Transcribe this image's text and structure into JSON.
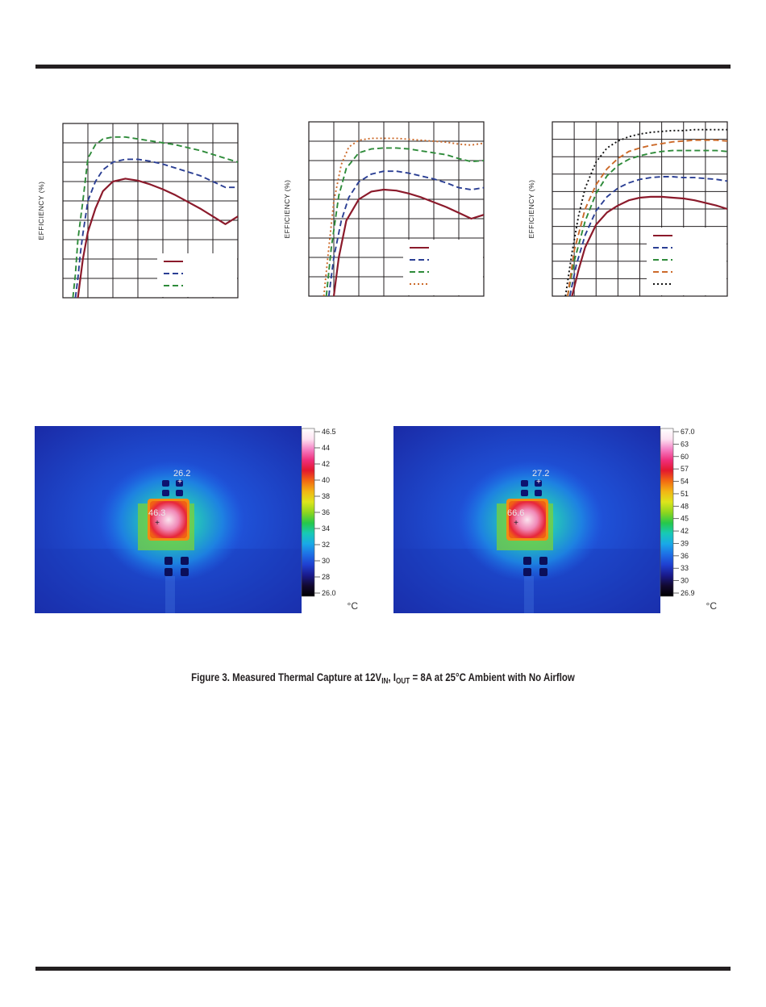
{
  "colors": {
    "rule": "#231f20",
    "grid": "#231f20",
    "series": [
      "#8b1a2b",
      "#2b3f94",
      "#2e8b3a",
      "#cc6a2a",
      "#111111"
    ]
  },
  "chart_data": [
    {
      "type": "line",
      "ylabel": "EFFICIENCY (%)",
      "grid": true,
      "legend_position": "bottom-right",
      "xlim": [
        0,
        7
      ],
      "ylim": [
        0,
        9
      ],
      "series": [
        {
          "style": "solid",
          "x": [
            0.6,
            0.7,
            0.8,
            1.0,
            1.3,
            1.6,
            2.0,
            2.5,
            3.0,
            3.5,
            4.0,
            4.5,
            5.0,
            5.5,
            6.0,
            6.5,
            7.0
          ],
          "y": [
            0,
            1.0,
            2.0,
            3.4,
            4.6,
            5.5,
            6.0,
            6.15,
            6.05,
            5.85,
            5.6,
            5.3,
            4.95,
            4.6,
            4.2,
            3.8,
            4.2
          ]
        },
        {
          "style": "dashed",
          "x": [
            0.5,
            0.6,
            0.7,
            0.8,
            1.0,
            1.3,
            1.6,
            2.0,
            2.5,
            3.0,
            3.5,
            4.0,
            4.5,
            5.0,
            5.5,
            6.0,
            6.5,
            7.0
          ],
          "y": [
            0,
            1.0,
            2.3,
            3.3,
            5.0,
            6.0,
            6.6,
            7.0,
            7.15,
            7.15,
            7.05,
            6.9,
            6.7,
            6.5,
            6.3,
            6.0,
            5.7,
            5.7
          ]
        },
        {
          "style": "dashed",
          "x": [
            0.4,
            0.5,
            0.6,
            0.8,
            1.0,
            1.3,
            1.6,
            2.0,
            2.5,
            3.0,
            3.5,
            4.0,
            4.5,
            5.0,
            5.5,
            6.0,
            6.5,
            7.0
          ],
          "y": [
            0,
            1.2,
            3.0,
            5.0,
            7.2,
            7.9,
            8.2,
            8.3,
            8.3,
            8.2,
            8.1,
            8.0,
            7.9,
            7.75,
            7.6,
            7.4,
            7.2,
            7.0
          ]
        }
      ]
    },
    {
      "type": "line",
      "ylabel": "EFFICIENCY (%)",
      "grid": true,
      "legend_position": "bottom-right",
      "xlim": [
        0,
        7
      ],
      "ylim": [
        0,
        9
      ],
      "series": [
        {
          "style": "solid",
          "x": [
            1.0,
            1.2,
            1.5,
            2.0,
            2.5,
            3.0,
            3.5,
            4.0,
            4.5,
            5.0,
            5.5,
            6.0,
            6.5,
            7.0
          ],
          "y": [
            0,
            2.0,
            3.9,
            5.0,
            5.4,
            5.5,
            5.45,
            5.3,
            5.1,
            4.85,
            4.6,
            4.3,
            4.0,
            4.2
          ]
        },
        {
          "style": "dashed",
          "x": [
            0.8,
            1.0,
            1.3,
            1.6,
            2.0,
            2.5,
            3.0,
            3.5,
            4.0,
            4.5,
            5.0,
            5.5,
            6.0,
            6.5,
            7.0
          ],
          "y": [
            0,
            2.0,
            3.9,
            5.1,
            5.9,
            6.3,
            6.45,
            6.45,
            6.35,
            6.2,
            6.05,
            5.85,
            5.6,
            5.5,
            5.6
          ]
        },
        {
          "style": "dashed",
          "x": [
            0.7,
            0.9,
            1.2,
            1.5,
            2.0,
            2.5,
            3.0,
            3.5,
            4.0,
            4.5,
            5.0,
            5.5,
            6.0,
            6.5,
            7.0
          ],
          "y": [
            0,
            2.5,
            5.2,
            6.6,
            7.4,
            7.6,
            7.65,
            7.65,
            7.6,
            7.5,
            7.4,
            7.3,
            7.1,
            6.95,
            7.0
          ]
        },
        {
          "style": "dotted",
          "x": [
            0.6,
            0.8,
            1.0,
            1.3,
            1.6,
            2.0,
            2.5,
            3.0,
            3.5,
            4.0,
            4.5,
            5.0,
            5.5,
            6.0,
            6.5,
            7.0
          ],
          "y": [
            0,
            2.5,
            4.9,
            6.8,
            7.7,
            8.05,
            8.15,
            8.15,
            8.15,
            8.1,
            8.05,
            8.0,
            7.95,
            7.85,
            7.8,
            7.9
          ]
        }
      ]
    },
    {
      "type": "line",
      "ylabel": "EFFICIENCY (%)",
      "grid": true,
      "legend_position": "bottom-right",
      "xlim": [
        0,
        8
      ],
      "ylim": [
        0,
        10
      ],
      "series": [
        {
          "style": "solid",
          "x": [
            0.9,
            1.2,
            1.5,
            2.0,
            2.5,
            3.0,
            3.5,
            4.0,
            4.5,
            5.0,
            5.5,
            6.0,
            6.5,
            7.0,
            7.5,
            8.0
          ],
          "y": [
            0,
            1.5,
            2.8,
            4.1,
            4.8,
            5.2,
            5.5,
            5.65,
            5.7,
            5.7,
            5.65,
            5.6,
            5.5,
            5.35,
            5.2,
            5.0
          ]
        },
        {
          "style": "dashed",
          "x": [
            0.8,
            1.1,
            1.5,
            2.0,
            2.5,
            3.0,
            3.5,
            4.0,
            4.5,
            5.0,
            5.5,
            6.0,
            6.5,
            7.0,
            7.5,
            8.0
          ],
          "y": [
            0,
            1.8,
            3.5,
            4.9,
            5.7,
            6.2,
            6.5,
            6.7,
            6.8,
            6.85,
            6.85,
            6.8,
            6.8,
            6.75,
            6.7,
            6.6
          ]
        },
        {
          "style": "dashed",
          "x": [
            0.7,
            1.0,
            1.5,
            2.0,
            2.5,
            3.0,
            3.5,
            4.0,
            4.5,
            5.0,
            5.5,
            6.0,
            6.5,
            7.0,
            7.5,
            8.0
          ],
          "y": [
            0,
            2.0,
            4.3,
            5.9,
            6.9,
            7.5,
            7.85,
            8.05,
            8.2,
            8.3,
            8.35,
            8.35,
            8.35,
            8.35,
            8.35,
            8.3
          ]
        },
        {
          "style": "dashed",
          "x": [
            0.7,
            1.0,
            1.5,
            2.0,
            2.5,
            3.0,
            3.5,
            4.0,
            4.5,
            5.0,
            5.5,
            6.0,
            6.5,
            7.0,
            7.5,
            8.0
          ],
          "y": [
            0,
            2.6,
            5.0,
            6.4,
            7.3,
            7.9,
            8.3,
            8.5,
            8.65,
            8.75,
            8.85,
            8.9,
            8.95,
            8.95,
            8.95,
            8.9
          ]
        },
        {
          "style": "dotted",
          "x": [
            0.6,
            0.9,
            1.2,
            1.5,
            2.0,
            2.5,
            3.0,
            3.5,
            4.0,
            4.5,
            5.0,
            5.5,
            6.0,
            6.5,
            7.0,
            7.5,
            8.0
          ],
          "y": [
            0,
            2.5,
            4.6,
            6.2,
            7.7,
            8.5,
            8.9,
            9.15,
            9.3,
            9.4,
            9.45,
            9.5,
            9.5,
            9.55,
            9.55,
            9.55,
            9.55
          ]
        }
      ]
    }
  ],
  "thermal": [
    {
      "scale": [
        "46.5",
        "44",
        "42",
        "40",
        "38",
        "36",
        "34",
        "32",
        "30",
        "28",
        "26.0"
      ],
      "unit": "°C",
      "spots": [
        "26.2",
        "46.3"
      ]
    },
    {
      "scale": [
        "67.0",
        "63",
        "60",
        "57",
        "54",
        "51",
        "48",
        "45",
        "42",
        "39",
        "36",
        "33",
        "30",
        "26.9"
      ],
      "unit": "°C",
      "spots": [
        "27.2",
        "66.6"
      ]
    }
  ],
  "caption": {
    "prefix": "Figure 3. Measured Thermal Capture at 12V",
    "sub1": "IN",
    "mid": ", I",
    "sub2": "OUT",
    "suffix": " = 8A at 25°C Ambient with No Airflow"
  }
}
